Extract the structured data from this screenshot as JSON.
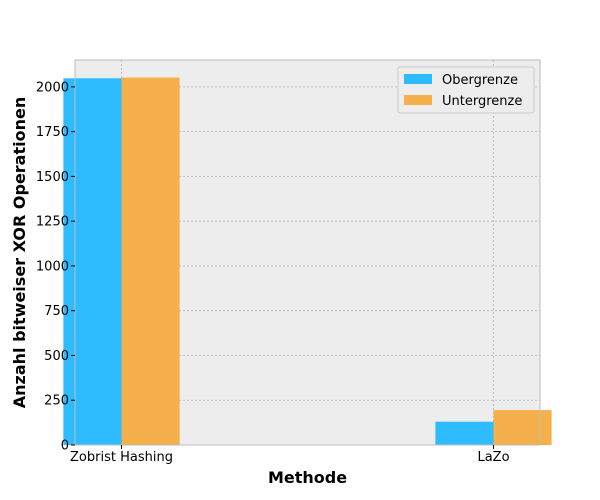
{
  "chart_data": {
    "type": "bar",
    "title": "",
    "xlabel": "Methode",
    "ylabel": "Anzahl bitweiser XOR Operationen",
    "categories": [
      "Zobrist Hashing",
      "LaZo"
    ],
    "series": [
      {
        "name": "Obergrenze",
        "values": [
          2048,
          130
        ],
        "color": "#2ebcff"
      },
      {
        "name": "Untergrenze",
        "values": [
          2052,
          195
        ],
        "color": "#f5b04b"
      }
    ],
    "ylim": [
      0,
      2150
    ],
    "yticks": [
      0,
      250,
      500,
      750,
      1000,
      1250,
      1500,
      1750,
      2000
    ],
    "grid": true,
    "legend_position": "top-right",
    "background_color": "#ededed"
  }
}
